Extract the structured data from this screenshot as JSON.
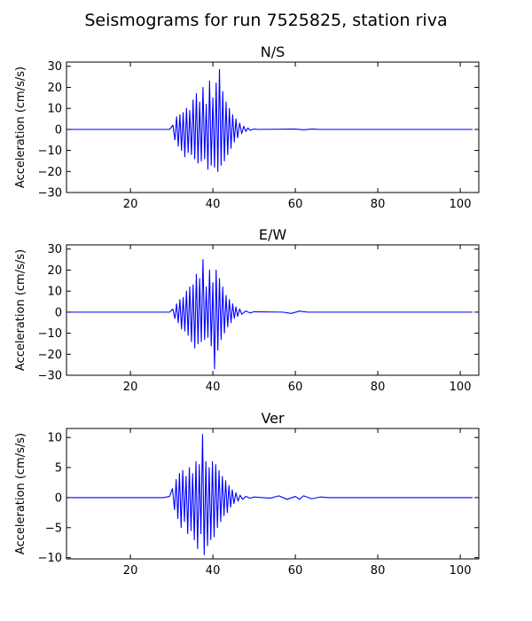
{
  "figure": {
    "title": "Seismograms for run 7525825, station riva"
  },
  "chart_data": [
    {
      "type": "line",
      "title": "N/S",
      "xlabel": "",
      "ylabel": "Acceleration (cm/s/s)",
      "xlim": [
        4.5,
        104.5
      ],
      "ylim": [
        -30,
        32
      ],
      "xticks": [
        20,
        40,
        60,
        80,
        100
      ],
      "yticks": [
        -30,
        -20,
        -10,
        0,
        10,
        20,
        30
      ],
      "grid": false,
      "color": "#0000ff",
      "series": [
        {
          "x": [
            5,
            29.5,
            30.3,
            30.8,
            31.2,
            31.6,
            32,
            32.4,
            32.8,
            33.2,
            33.6,
            34,
            34.4,
            34.8,
            35.2,
            35.6,
            36,
            36.4,
            36.8,
            37.2,
            37.6,
            38,
            38.4,
            38.8,
            39.2,
            39.6,
            40,
            40.4,
            40.8,
            41.2,
            41.6,
            42,
            42.4,
            42.8,
            43.2,
            43.6,
            44,
            44.4,
            44.8,
            45.2,
            45.6,
            46,
            46.5,
            47,
            47.5,
            48,
            48.5,
            49,
            50,
            51,
            60,
            62,
            64,
            66,
            103
          ],
          "y": [
            0,
            0,
            2,
            -5,
            6,
            -8,
            7,
            -10,
            8,
            -13,
            10,
            -11,
            9,
            -12,
            14,
            -14,
            17,
            -16,
            13,
            -15,
            20,
            -14,
            12,
            -19,
            23,
            -17,
            15,
            -18,
            22,
            -20,
            28.5,
            -17,
            18,
            -15,
            13,
            -12,
            10,
            -9,
            7,
            -6,
            5,
            -4,
            3,
            -2,
            1.5,
            -1,
            0.7,
            -0.4,
            0.2,
            0,
            0.2,
            -0.2,
            0.2,
            0,
            0
          ]
        }
      ]
    },
    {
      "type": "line",
      "title": "E/W",
      "xlabel": "",
      "ylabel": "Acceleration (cm/s/s)",
      "xlim": [
        4.5,
        104.5
      ],
      "ylim": [
        -30,
        32
      ],
      "xticks": [
        20,
        40,
        60,
        80,
        100
      ],
      "yticks": [
        -30,
        -20,
        -10,
        0,
        10,
        20,
        30
      ],
      "grid": false,
      "color": "#0000ff",
      "series": [
        {
          "x": [
            5,
            29.5,
            30.3,
            30.8,
            31.2,
            31.6,
            32,
            32.4,
            32.8,
            33.2,
            33.6,
            34,
            34.4,
            34.8,
            35.2,
            35.6,
            36,
            36.4,
            36.8,
            37.2,
            37.6,
            38,
            38.4,
            38.8,
            39.2,
            39.6,
            40,
            40.4,
            40.8,
            41.2,
            41.6,
            42,
            42.4,
            42.8,
            43.2,
            43.6,
            44,
            44.4,
            44.8,
            45.2,
            45.6,
            46,
            46.5,
            47,
            48,
            49,
            50,
            57,
            59,
            61,
            63,
            103
          ],
          "y": [
            0,
            0,
            1.5,
            -3,
            4,
            -5,
            6,
            -8,
            7,
            -9,
            10,
            -11,
            12,
            -14,
            13,
            -17,
            18,
            -15,
            16,
            -14,
            25,
            -13,
            12,
            -12,
            20,
            -16,
            14,
            -27,
            20,
            -18,
            16,
            -13,
            12,
            -10,
            8,
            -7,
            6,
            -5,
            4,
            -3,
            2.5,
            -2,
            1.5,
            -1,
            0.6,
            -0.4,
            0.2,
            0,
            -0.6,
            0.5,
            0,
            0
          ]
        }
      ]
    },
    {
      "type": "line",
      "title": "Ver",
      "xlabel": "",
      "ylabel": "Acceleration (cm/s/s)",
      "xlim": [
        4.5,
        104.5
      ],
      "ylim": [
        -10.2,
        11.5
      ],
      "xticks": [
        20,
        40,
        60,
        80,
        100
      ],
      "yticks": [
        -10,
        -5,
        0,
        5,
        10
      ],
      "grid": false,
      "color": "#0000ff",
      "series": [
        {
          "x": [
            5,
            28,
            29.5,
            30.2,
            30.7,
            31.1,
            31.5,
            31.9,
            32.3,
            32.7,
            33.1,
            33.5,
            33.9,
            34.3,
            34.7,
            35.1,
            35.5,
            35.9,
            36.3,
            36.7,
            37.1,
            37.5,
            37.9,
            38.3,
            38.7,
            39.1,
            39.5,
            39.9,
            40.3,
            40.7,
            41.1,
            41.5,
            41.9,
            42.3,
            42.7,
            43.1,
            43.5,
            43.9,
            44.3,
            44.7,
            45.1,
            45.6,
            46.1,
            46.6,
            47.2,
            48,
            49,
            50,
            52,
            54,
            56,
            58,
            60,
            61,
            62,
            64,
            66,
            68,
            70,
            103
          ],
          "y": [
            0,
            0,
            0.2,
            1.5,
            -2,
            3,
            -3.5,
            4,
            -5,
            4.5,
            -4,
            3.5,
            -6,
            5,
            -5.5,
            4,
            -7,
            6,
            -8.5,
            5.5,
            -6,
            10.5,
            -9.5,
            6,
            -8,
            5,
            -7,
            6,
            -6.5,
            5.5,
            -5,
            4.5,
            -4,
            3.5,
            -3,
            2.8,
            -2.5,
            2,
            -1.6,
            1.3,
            -1,
            0.8,
            -0.6,
            0.4,
            -0.3,
            0.2,
            -0.1,
            0.1,
            0,
            -0.1,
            0.3,
            -0.3,
            0.2,
            -0.3,
            0.3,
            -0.2,
            0.1,
            0,
            0,
            0
          ]
        }
      ]
    }
  ]
}
